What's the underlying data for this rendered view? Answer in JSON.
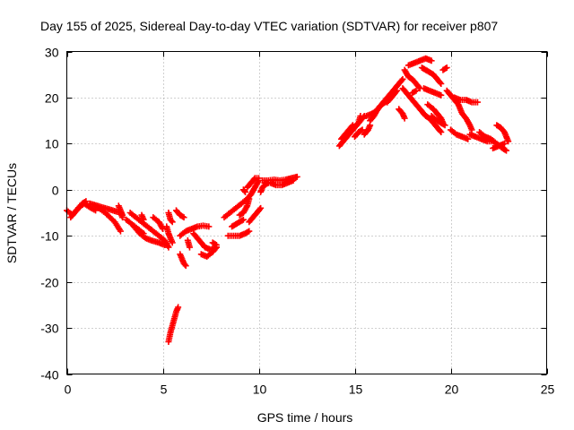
{
  "chart_data": {
    "type": "scatter",
    "title": "Day 155 of 2025, Sidereal Day-to-day VTEC variation (SDTVAR) for receiver p807",
    "xlabel": "GPS time / hours",
    "ylabel": "SDTVAR / TECUs",
    "xlim": [
      0,
      25
    ],
    "ylim": [
      -40,
      30
    ],
    "xticks": [
      0,
      5,
      10,
      15,
      20,
      25
    ],
    "yticks": [
      -40,
      -30,
      -20,
      -10,
      0,
      10,
      20,
      30
    ],
    "grid": true,
    "marker": "+",
    "color": "#ff0000",
    "segments": [
      {
        "name": "arc-01",
        "points": [
          [
            0.0,
            -4.5
          ],
          [
            0.3,
            -5.5
          ],
          [
            0.6,
            -4.0
          ],
          [
            0.9,
            -3.0
          ],
          [
            1.2,
            -3.8
          ],
          [
            1.5,
            -4.5
          ]
        ]
      },
      {
        "name": "arc-02",
        "points": [
          [
            0.2,
            -6.0
          ],
          [
            0.5,
            -4.5
          ],
          [
            0.8,
            -3.0
          ],
          [
            1.0,
            -2.5
          ]
        ]
      },
      {
        "name": "arc-03",
        "points": [
          [
            1.2,
            -3.0
          ],
          [
            1.6,
            -3.5
          ],
          [
            2.0,
            -4.0
          ],
          [
            2.4,
            -4.5
          ],
          [
            2.8,
            -5.0
          ],
          [
            2.9,
            -6.0
          ]
        ]
      },
      {
        "name": "arc-04",
        "points": [
          [
            1.5,
            -3.5
          ],
          [
            2.0,
            -5.0
          ],
          [
            2.5,
            -7.0
          ],
          [
            2.8,
            -9.0
          ]
        ]
      },
      {
        "name": "arc-05",
        "points": [
          [
            2.7,
            -3.5
          ],
          [
            2.8,
            -4.5
          ],
          [
            2.9,
            -5.5
          ]
        ]
      },
      {
        "name": "arc-06",
        "points": [
          [
            3.1,
            -6.5
          ],
          [
            3.4,
            -7.5
          ],
          [
            3.7,
            -8.5
          ],
          [
            4.0,
            -9.5
          ]
        ]
      },
      {
        "name": "arc-07",
        "points": [
          [
            3.3,
            -5.0
          ],
          [
            3.6,
            -6.0
          ],
          [
            3.9,
            -7.0
          ],
          [
            4.2,
            -8.0
          ],
          [
            4.5,
            -9.0
          ],
          [
            4.8,
            -10.0
          ],
          [
            5.1,
            -11.0
          ],
          [
            5.3,
            -12.5
          ]
        ]
      },
      {
        "name": "arc-08",
        "points": [
          [
            3.5,
            -8.0
          ],
          [
            3.8,
            -9.5
          ],
          [
            4.1,
            -10.5
          ],
          [
            4.4,
            -11.0
          ],
          [
            4.8,
            -11.5
          ],
          [
            5.1,
            -12.0
          ]
        ]
      },
      {
        "name": "arc-09",
        "points": [
          [
            3.9,
            -5.5
          ],
          [
            4.0,
            -6.5
          ]
        ]
      },
      {
        "name": "arc-10",
        "points": [
          [
            4.5,
            -6.0
          ],
          [
            4.8,
            -7.0
          ],
          [
            5.0,
            -8.5
          ]
        ]
      },
      {
        "name": "arc-11",
        "points": [
          [
            5.2,
            -8.0
          ],
          [
            5.3,
            -9.5
          ],
          [
            5.4,
            -10.5
          ],
          [
            5.5,
            -11.5
          ]
        ]
      },
      {
        "name": "arc-12",
        "points": [
          [
            5.3,
            -5.0
          ],
          [
            5.4,
            -6.5
          ],
          [
            5.5,
            -7.0
          ]
        ]
      },
      {
        "name": "arc-13",
        "points": [
          [
            5.3,
            -33.0
          ],
          [
            5.4,
            -31.0
          ],
          [
            5.5,
            -29.5
          ],
          [
            5.6,
            -28.0
          ],
          [
            5.7,
            -26.5
          ],
          [
            5.8,
            -25.5
          ]
        ]
      },
      {
        "name": "arc-14",
        "points": [
          [
            5.7,
            -4.5
          ],
          [
            5.9,
            -5.5
          ],
          [
            6.1,
            -6.0
          ]
        ]
      },
      {
        "name": "arc-15",
        "points": [
          [
            5.9,
            -10.0
          ],
          [
            6.2,
            -9.0
          ],
          [
            6.5,
            -8.5
          ],
          [
            6.8,
            -8.0
          ],
          [
            7.1,
            -7.8
          ],
          [
            7.4,
            -8.0
          ]
        ]
      },
      {
        "name": "arc-16",
        "points": [
          [
            5.9,
            -14.0
          ],
          [
            6.0,
            -15.0
          ],
          [
            6.1,
            -16.0
          ],
          [
            6.2,
            -16.5
          ]
        ]
      },
      {
        "name": "arc-17",
        "points": [
          [
            6.3,
            -11.0
          ],
          [
            6.4,
            -12.5
          ]
        ]
      },
      {
        "name": "arc-18",
        "points": [
          [
            6.6,
            -9.5
          ],
          [
            6.8,
            -10.5
          ],
          [
            7.0,
            -11.5
          ],
          [
            7.2,
            -12.5
          ],
          [
            7.5,
            -13.0
          ],
          [
            7.8,
            -12.5
          ]
        ]
      },
      {
        "name": "arc-19",
        "points": [
          [
            7.0,
            -14.0
          ],
          [
            7.3,
            -14.5
          ],
          [
            7.6,
            -13.5
          ],
          [
            7.8,
            -12.5
          ]
        ]
      },
      {
        "name": "arc-20",
        "points": [
          [
            7.6,
            -11.5
          ],
          [
            7.8,
            -12.0
          ]
        ]
      },
      {
        "name": "arc-21",
        "points": [
          [
            8.2,
            -6.0
          ],
          [
            8.5,
            -5.0
          ],
          [
            8.8,
            -4.0
          ],
          [
            9.1,
            -3.0
          ],
          [
            9.4,
            -2.0
          ],
          [
            9.6,
            -1.0
          ],
          [
            9.8,
            0.5
          ],
          [
            10.0,
            2.0
          ]
        ]
      },
      {
        "name": "arc-22",
        "points": [
          [
            8.4,
            -10.0
          ],
          [
            8.7,
            -10.0
          ],
          [
            9.0,
            -10.0
          ],
          [
            9.3,
            -9.5
          ],
          [
            9.5,
            -9.0
          ]
        ]
      },
      {
        "name": "arc-23",
        "points": [
          [
            8.6,
            -8.0
          ],
          [
            8.8,
            -7.5
          ],
          [
            9.0,
            -7.0
          ],
          [
            9.2,
            -6.5
          ]
        ]
      },
      {
        "name": "arc-24",
        "points": [
          [
            9.0,
            -5.5
          ],
          [
            9.2,
            -5.0
          ],
          [
            9.4,
            -3.5
          ],
          [
            9.5,
            -2.0
          ]
        ]
      },
      {
        "name": "arc-25",
        "points": [
          [
            9.2,
            0.0
          ],
          [
            9.3,
            -0.5
          ]
        ]
      },
      {
        "name": "arc-26",
        "points": [
          [
            9.4,
            0.5
          ],
          [
            9.6,
            1.5
          ],
          [
            9.8,
            2.5
          ],
          [
            10.0,
            2.5
          ]
        ]
      },
      {
        "name": "arc-27",
        "points": [
          [
            9.5,
            -7.0
          ],
          [
            9.7,
            -6.0
          ],
          [
            9.9,
            -5.0
          ],
          [
            10.1,
            -4.0
          ]
        ]
      },
      {
        "name": "arc-28",
        "points": [
          [
            10.1,
            -0.5
          ],
          [
            10.2,
            0.5
          ],
          [
            10.3,
            1.0
          ],
          [
            10.5,
            1.5
          ]
        ]
      },
      {
        "name": "arc-29",
        "points": [
          [
            10.2,
            2.0
          ],
          [
            10.5,
            2.0
          ],
          [
            10.8,
            2.2
          ],
          [
            11.1,
            2.0
          ],
          [
            11.4,
            2.2
          ],
          [
            11.7,
            2.5
          ],
          [
            12.0,
            2.8
          ]
        ]
      },
      {
        "name": "arc-30",
        "points": [
          [
            10.3,
            1.5
          ],
          [
            10.6,
            1.5
          ],
          [
            10.9,
            1.0
          ],
          [
            11.2,
            1.0
          ],
          [
            11.5,
            1.5
          ],
          [
            11.8,
            2.0
          ]
        ]
      },
      {
        "name": "arc-31",
        "points": [
          [
            14.2,
            9.5
          ],
          [
            14.4,
            10.5
          ],
          [
            14.6,
            11.5
          ],
          [
            14.8,
            12.5
          ],
          [
            15.0,
            13.5
          ],
          [
            15.2,
            14.5
          ],
          [
            15.3,
            16.0
          ]
        ]
      },
      {
        "name": "arc-32",
        "points": [
          [
            14.3,
            11.0
          ],
          [
            14.5,
            12.0
          ],
          [
            14.7,
            13.0
          ],
          [
            14.9,
            14.0
          ]
        ]
      },
      {
        "name": "arc-33",
        "points": [
          [
            14.9,
            13.5
          ],
          [
            15.1,
            14.0
          ],
          [
            15.3,
            15.0
          ],
          [
            15.5,
            16.0
          ]
        ]
      },
      {
        "name": "arc-34",
        "points": [
          [
            15.0,
            11.5
          ],
          [
            15.2,
            12.5
          ],
          [
            15.4,
            13.0
          ]
        ]
      },
      {
        "name": "arc-35",
        "points": [
          [
            15.5,
            12.0
          ],
          [
            15.7,
            13.0
          ],
          [
            15.8,
            14.0
          ]
        ]
      },
      {
        "name": "arc-36",
        "points": [
          [
            15.6,
            16.0
          ],
          [
            15.9,
            16.5
          ],
          [
            16.1,
            17.0
          ],
          [
            16.3,
            18.0
          ],
          [
            16.5,
            19.0
          ],
          [
            16.7,
            20.0
          ],
          [
            16.9,
            21.0
          ],
          [
            17.1,
            22.0
          ],
          [
            17.3,
            23.0
          ],
          [
            17.5,
            24.0
          ]
        ]
      },
      {
        "name": "arc-37",
        "points": [
          [
            15.8,
            15.0
          ],
          [
            16.0,
            16.0
          ],
          [
            16.2,
            17.5
          ],
          [
            16.4,
            18.5
          ],
          [
            16.6,
            19.0
          ],
          [
            16.8,
            19.5
          ],
          [
            17.0,
            20.5
          ],
          [
            17.2,
            21.5
          ]
        ]
      },
      {
        "name": "arc-38",
        "points": [
          [
            16.7,
            19.0
          ],
          [
            17.0,
            20.5
          ]
        ]
      },
      {
        "name": "arc-39",
        "points": [
          [
            17.3,
            17.5
          ],
          [
            17.5,
            16.5
          ],
          [
            17.6,
            15.5
          ]
        ]
      },
      {
        "name": "arc-40",
        "points": [
          [
            17.5,
            22.0
          ],
          [
            17.7,
            21.0
          ],
          [
            17.9,
            20.0
          ],
          [
            18.1,
            19.0
          ],
          [
            18.3,
            18.0
          ],
          [
            18.5,
            17.0
          ],
          [
            18.7,
            16.0
          ],
          [
            18.9,
            15.5
          ],
          [
            19.1,
            14.5
          ],
          [
            19.3,
            13.5
          ],
          [
            19.5,
            12.5
          ]
        ]
      },
      {
        "name": "arc-41",
        "points": [
          [
            17.6,
            26.0
          ],
          [
            17.8,
            24.5
          ],
          [
            18.0,
            24.0
          ],
          [
            18.2,
            23.0
          ],
          [
            18.4,
            22.0
          ]
        ]
      },
      {
        "name": "arc-42",
        "points": [
          [
            17.8,
            27.0
          ],
          [
            18.1,
            27.5
          ],
          [
            18.4,
            28.0
          ],
          [
            18.7,
            28.5
          ],
          [
            19.0,
            28.0
          ]
        ]
      },
      {
        "name": "arc-43",
        "points": [
          [
            18.0,
            21.0
          ],
          [
            18.2,
            21.5
          ]
        ]
      },
      {
        "name": "arc-44",
        "points": [
          [
            18.5,
            26.5
          ],
          [
            18.7,
            26.0
          ],
          [
            18.9,
            25.5
          ],
          [
            19.1,
            25.0
          ],
          [
            19.3,
            24.0
          ],
          [
            19.5,
            23.0
          ]
        ]
      },
      {
        "name": "arc-45",
        "points": [
          [
            18.6,
            22.0
          ],
          [
            18.9,
            21.5
          ],
          [
            19.2,
            21.0
          ],
          [
            19.5,
            20.5
          ]
        ]
      },
      {
        "name": "arc-46",
        "points": [
          [
            18.8,
            18.5
          ],
          [
            19.1,
            17.5
          ],
          [
            19.3,
            16.5
          ],
          [
            19.5,
            15.5
          ],
          [
            19.6,
            14.5
          ]
        ]
      },
      {
        "name": "arc-47",
        "points": [
          [
            19.0,
            16.0
          ],
          [
            19.3,
            15.0
          ],
          [
            19.5,
            14.5
          ],
          [
            19.7,
            14.0
          ]
        ]
      },
      {
        "name": "arc-48",
        "points": [
          [
            19.6,
            26.0
          ],
          [
            19.8,
            26.5
          ]
        ]
      },
      {
        "name": "arc-49",
        "points": [
          [
            19.8,
            21.5
          ],
          [
            20.0,
            20.5
          ],
          [
            20.2,
            19.5
          ],
          [
            20.4,
            18.5
          ],
          [
            20.5,
            17.5
          ],
          [
            20.6,
            16.5
          ],
          [
            20.8,
            15.5
          ],
          [
            21.0,
            14.0
          ],
          [
            21.1,
            13.0
          ]
        ]
      },
      {
        "name": "arc-50",
        "points": [
          [
            20.2,
            20.0
          ],
          [
            20.5,
            19.5
          ],
          [
            20.8,
            19.5
          ],
          [
            21.1,
            19.0
          ],
          [
            21.4,
            19.0
          ]
        ]
      },
      {
        "name": "arc-51",
        "points": [
          [
            20.0,
            13.0
          ],
          [
            20.3,
            12.0
          ],
          [
            20.6,
            11.5
          ],
          [
            20.9,
            11.0
          ]
        ]
      },
      {
        "name": "arc-52",
        "points": [
          [
            21.0,
            12.0
          ],
          [
            21.3,
            11.5
          ],
          [
            21.6,
            11.0
          ],
          [
            21.9,
            10.5
          ],
          [
            22.2,
            10.5
          ]
        ]
      },
      {
        "name": "arc-53",
        "points": [
          [
            21.5,
            12.5
          ],
          [
            21.8,
            11.5
          ],
          [
            22.1,
            11.0
          ],
          [
            22.4,
            10.0
          ],
          [
            22.7,
            9.0
          ],
          [
            22.9,
            8.5
          ]
        ]
      },
      {
        "name": "arc-54",
        "points": [
          [
            22.2,
            9.0
          ],
          [
            22.5,
            9.5
          ],
          [
            22.8,
            10.0
          ]
        ]
      },
      {
        "name": "arc-55",
        "points": [
          [
            22.4,
            14.0
          ],
          [
            22.6,
            13.5
          ],
          [
            22.8,
            12.5
          ],
          [
            22.9,
            11.5
          ],
          [
            23.0,
            10.5
          ]
        ]
      }
    ]
  }
}
